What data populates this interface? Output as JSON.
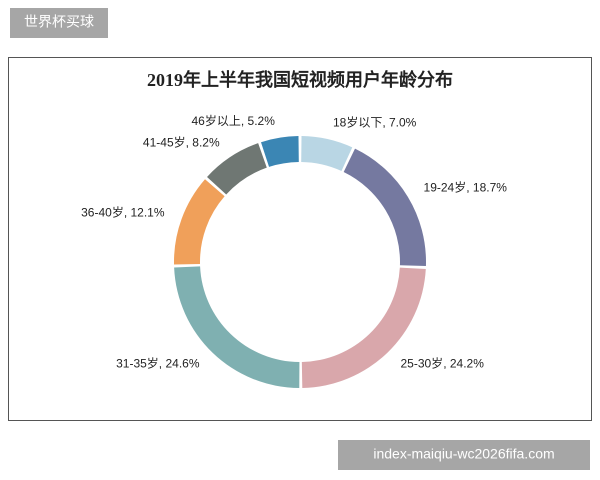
{
  "badge": "世界杯买球",
  "watermark": "index-maiqiu-wc2026fifa.com",
  "chart_data": {
    "type": "donut",
    "title": "2019年上半年我国短视频用户年龄分布",
    "categories": [
      "18岁以下",
      "19-24岁",
      "25-30岁",
      "31-35岁",
      "36-40岁",
      "41-45岁",
      "46岁以上"
    ],
    "values": [
      7.0,
      18.7,
      24.2,
      24.6,
      12.1,
      8.2,
      5.2
    ],
    "value_labels": [
      "7.0%",
      "18.7%",
      "24.2%",
      "24.6%",
      "12.1%",
      "8.2%",
      "5.2%"
    ],
    "label_separator": ", ",
    "colors": [
      "#b9d6e4",
      "#7579a0",
      "#d9a7ab",
      "#7fb0b1",
      "#f0a05a",
      "#6f7773",
      "#3b86b4"
    ]
  }
}
